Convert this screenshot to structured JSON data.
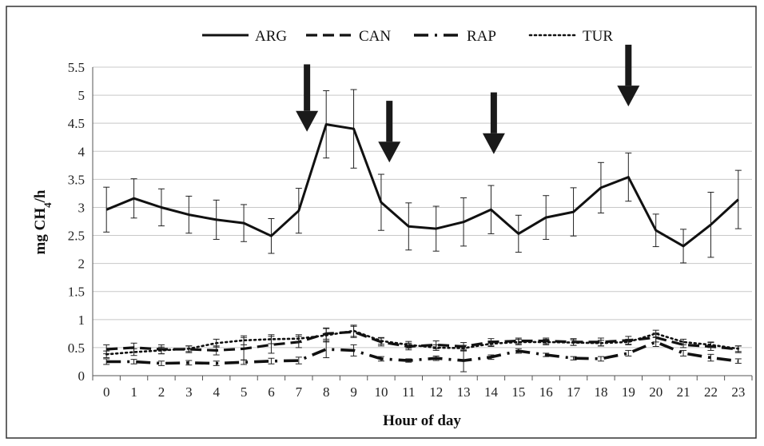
{
  "chart_data": {
    "type": "line",
    "xlabel": "Hour of day",
    "ylabel": {
      "pre": "mg CH",
      "sub": "4",
      "post": "/h"
    },
    "x": [
      0,
      1,
      2,
      3,
      4,
      5,
      6,
      7,
      8,
      9,
      10,
      11,
      12,
      13,
      14,
      15,
      16,
      17,
      18,
      19,
      20,
      21,
      22,
      23
    ],
    "x_tick_labels": [
      "0",
      "1",
      "2",
      "3",
      "4",
      "5",
      "6",
      "7",
      "8",
      "9",
      "10",
      "11",
      "12",
      "13",
      "14",
      "15",
      "16",
      "17",
      "18",
      "19",
      "20",
      "21",
      "22",
      "23"
    ],
    "y_ticks": [
      0,
      0.5,
      1,
      1.5,
      2,
      2.5,
      3,
      3.5,
      4,
      4.5,
      5,
      5.5
    ],
    "y_tick_labels": [
      "0",
      "0.5",
      "1",
      "1.5",
      "2",
      "2.5",
      "3",
      "3.5",
      "4",
      "4.5",
      "5",
      "5.5"
    ],
    "ylim": [
      0,
      5.5
    ],
    "grid": true,
    "legend_position": "top",
    "series": [
      {
        "name": "ARG",
        "style": "solid",
        "values": [
          2.96,
          3.16,
          3.0,
          2.87,
          2.78,
          2.72,
          2.49,
          2.94,
          4.48,
          4.4,
          3.09,
          2.66,
          2.62,
          2.74,
          2.96,
          2.53,
          2.82,
          2.92,
          3.35,
          3.54,
          2.59,
          2.31,
          2.69,
          3.14
        ],
        "errors": [
          0.4,
          0.35,
          0.33,
          0.33,
          0.35,
          0.33,
          0.31,
          0.4,
          0.6,
          0.7,
          0.5,
          0.42,
          0.4,
          0.43,
          0.43,
          0.33,
          0.39,
          0.43,
          0.45,
          0.43,
          0.29,
          0.3,
          0.58,
          0.52
        ]
      },
      {
        "name": "CAN",
        "style": "dashed",
        "values": [
          0.47,
          0.5,
          0.47,
          0.47,
          0.45,
          0.48,
          0.55,
          0.6,
          0.75,
          0.78,
          0.6,
          0.52,
          0.55,
          0.52,
          0.6,
          0.62,
          0.62,
          0.6,
          0.6,
          0.63,
          0.68,
          0.55,
          0.52,
          0.47
        ],
        "errors": [
          0.08,
          0.08,
          0.08,
          0.06,
          0.08,
          0.2,
          0.15,
          0.1,
          0.1,
          0.1,
          0.07,
          0.06,
          0.07,
          0.07,
          0.06,
          0.05,
          0.05,
          0.06,
          0.07,
          0.07,
          0.08,
          0.05,
          0.07,
          0.06
        ]
      },
      {
        "name": "RAP",
        "style": "dash-dot",
        "values": [
          0.25,
          0.25,
          0.22,
          0.23,
          0.22,
          0.24,
          0.26,
          0.27,
          0.47,
          0.45,
          0.3,
          0.27,
          0.31,
          0.27,
          0.33,
          0.44,
          0.37,
          0.31,
          0.3,
          0.4,
          0.6,
          0.4,
          0.32,
          0.26
        ],
        "errors": [
          0.05,
          0.04,
          0.04,
          0.04,
          0.04,
          0.04,
          0.05,
          0.06,
          0.15,
          0.1,
          0.04,
          0.03,
          0.04,
          0.2,
          0.04,
          0.04,
          0.03,
          0.03,
          0.04,
          0.05,
          0.08,
          0.05,
          0.06,
          0.04
        ]
      },
      {
        "name": "TUR",
        "style": "dotted",
        "values": [
          0.38,
          0.42,
          0.45,
          0.48,
          0.58,
          0.63,
          0.65,
          0.66,
          0.72,
          0.8,
          0.62,
          0.55,
          0.5,
          0.49,
          0.57,
          0.6,
          0.6,
          0.59,
          0.58,
          0.6,
          0.75,
          0.6,
          0.55,
          0.48
        ],
        "errors": [
          0.06,
          0.06,
          0.06,
          0.05,
          0.07,
          0.08,
          0.08,
          0.07,
          0.12,
          0.1,
          0.06,
          0.06,
          0.05,
          0.05,
          0.05,
          0.05,
          0.05,
          0.05,
          0.05,
          0.05,
          0.06,
          0.05,
          0.05,
          0.05
        ]
      }
    ],
    "annotations": {
      "arrows": [
        {
          "x": 7.3,
          "y_top": 5.55,
          "y_tip": 4.35
        },
        {
          "x": 10.3,
          "y_top": 4.9,
          "y_tip": 3.8
        },
        {
          "x": 14.1,
          "y_top": 5.05,
          "y_tip": 3.95
        },
        {
          "x": 19.0,
          "y_top": 5.9,
          "y_tip": 4.8
        }
      ]
    }
  }
}
